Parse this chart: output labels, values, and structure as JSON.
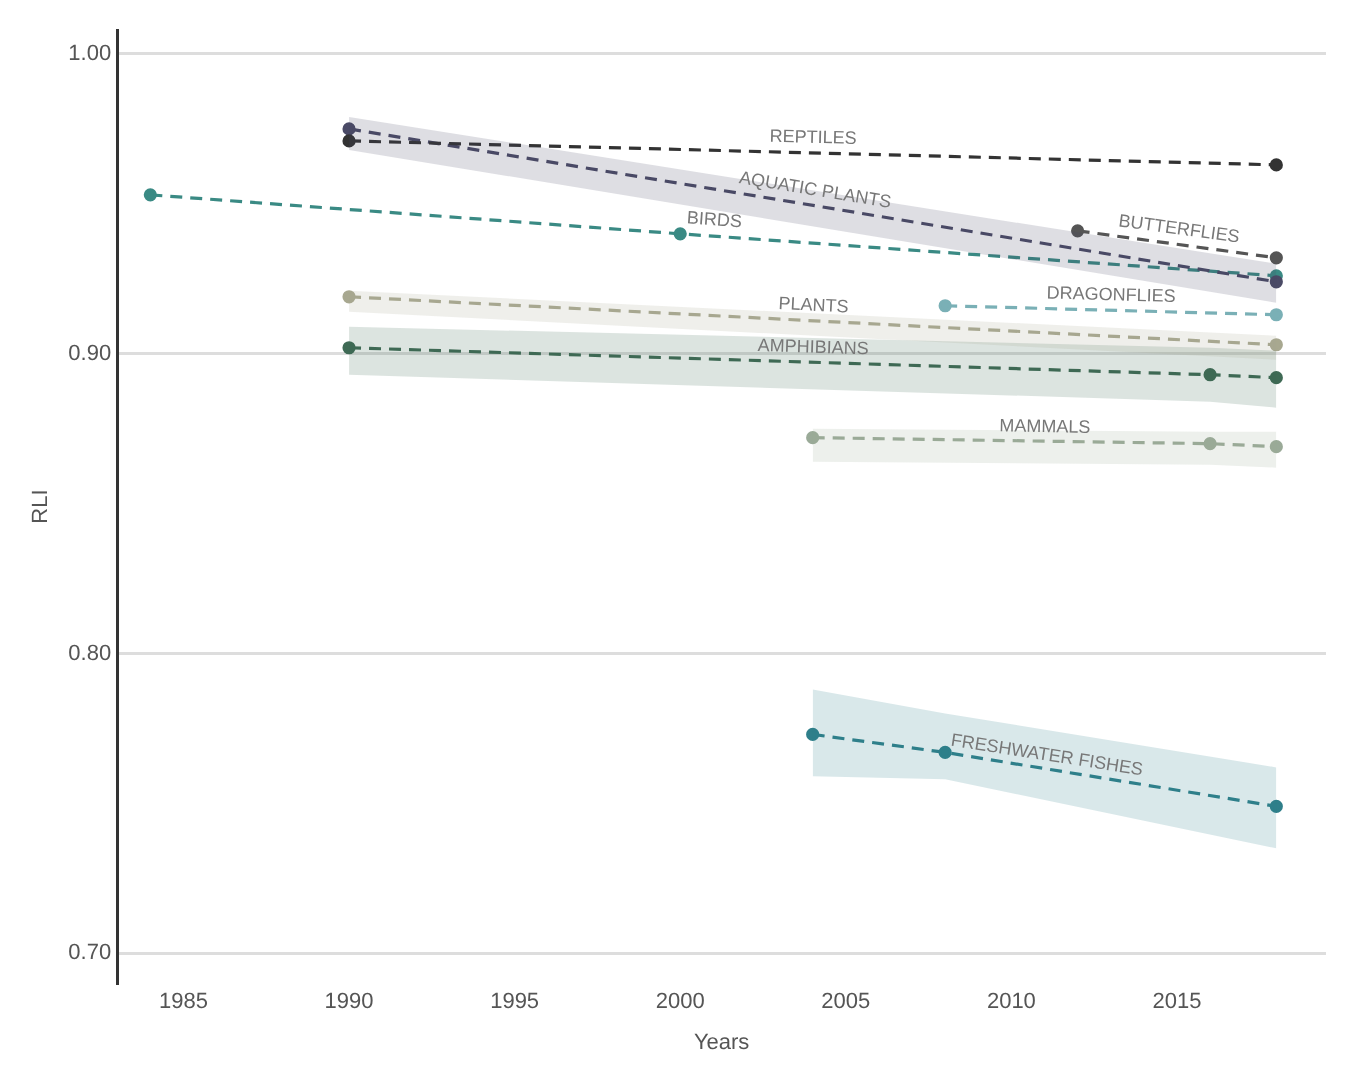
{
  "chart_data": {
    "type": "line",
    "xlabel": "Years",
    "ylabel": "RLI",
    "xlim": [
      1983,
      2019.5
    ],
    "xticks": [
      1985,
      1990,
      1995,
      2000,
      2005,
      2010,
      2015
    ],
    "ylim": [
      0.69,
      1.008
    ],
    "yticks": [
      {
        "value": 0.7,
        "label": "0.70"
      },
      {
        "value": 0.8,
        "label": "0.80"
      },
      {
        "value": 0.9,
        "label": "0.90"
      },
      {
        "value": 1.0,
        "label": "1.00"
      }
    ],
    "grid": "y",
    "legend": false,
    "marker": "circle",
    "line_style": "dashed",
    "series": [
      {
        "name": "REPTILES",
        "color": "#333333",
        "x": [
          1990,
          2018
        ],
        "values": [
          0.971,
          0.963
        ]
      },
      {
        "name": "AQUATIC PLANTS",
        "color": "#4a4a66",
        "x": [
          1990,
          2018
        ],
        "values": [
          0.975,
          0.924
        ],
        "lower": [
          0.968,
          0.917
        ],
        "upper": [
          0.979,
          0.93
        ]
      },
      {
        "name": "BUTTERFLIES",
        "color": "#555555",
        "x": [
          2012,
          2018
        ],
        "values": [
          0.941,
          0.932
        ]
      },
      {
        "name": "BIRDS",
        "color": "#3a8a84",
        "x": [
          1984,
          2000,
          2018
        ],
        "values": [
          0.953,
          0.94,
          0.926
        ]
      },
      {
        "name": "DRAGONFLIES",
        "color": "#7ab0b6",
        "x": [
          2008,
          2018
        ],
        "values": [
          0.916,
          0.913
        ]
      },
      {
        "name": "PLANTS",
        "color": "#a8a890",
        "x": [
          1990,
          2018
        ],
        "values": [
          0.919,
          0.903
        ],
        "lower": [
          0.914,
          0.898
        ],
        "upper": [
          0.921,
          0.906
        ]
      },
      {
        "name": "AMPHIBIANS",
        "color": "#3f6a55",
        "x": [
          1990,
          2016,
          2018
        ],
        "values": [
          0.902,
          0.893,
          0.892
        ],
        "lower": [
          0.893,
          0.884,
          0.882
        ],
        "upper": [
          0.909,
          0.902,
          0.901
        ]
      },
      {
        "name": "MAMMALS",
        "color": "#9aaa98",
        "x": [
          2004,
          2016,
          2018
        ],
        "values": [
          0.872,
          0.87,
          0.869
        ],
        "lower": [
          0.864,
          0.863,
          0.862
        ],
        "upper": [
          0.875,
          0.874,
          0.874
        ]
      },
      {
        "name": "FRESHWATER FISHES",
        "color": "#2f7f8a",
        "x": [
          2004,
          2008,
          2018
        ],
        "values": [
          0.773,
          0.767,
          0.749
        ],
        "lower": [
          0.759,
          0.758,
          0.735
        ],
        "upper": [
          0.788,
          0.78,
          0.762
        ]
      }
    ]
  }
}
